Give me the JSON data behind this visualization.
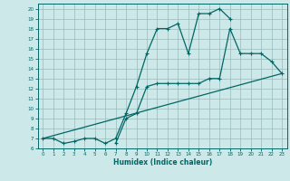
{
  "bg_color": "#cce8e8",
  "grid_color": "#99bbbb",
  "line_color": "#006666",
  "xlabel": "Humidex (Indice chaleur)",
  "xlim": [
    -0.5,
    23.5
  ],
  "ylim": [
    6,
    20.5
  ],
  "xticks": [
    0,
    1,
    2,
    3,
    4,
    5,
    6,
    7,
    8,
    9,
    10,
    11,
    12,
    13,
    14,
    15,
    16,
    17,
    18,
    19,
    20,
    21,
    22,
    23
  ],
  "yticks": [
    6,
    7,
    8,
    9,
    10,
    11,
    12,
    13,
    14,
    15,
    16,
    17,
    18,
    19,
    20
  ],
  "curve1_x": [
    0,
    1,
    2,
    3,
    4,
    5,
    6,
    7,
    8,
    9,
    10,
    11,
    12,
    13,
    14,
    15,
    16,
    17,
    18
  ],
  "curve1_y": [
    7.0,
    7.0,
    6.5,
    6.7,
    7.0,
    7.0,
    6.5,
    7.0,
    9.5,
    12.2,
    15.5,
    18.0,
    18.0,
    18.5,
    15.5,
    19.5,
    19.5,
    20.0,
    19.0
  ],
  "curve2_x": [
    7,
    8,
    9,
    10,
    11,
    12,
    13,
    14,
    15,
    16,
    17,
    18,
    19,
    20,
    21,
    22,
    23
  ],
  "curve2_y": [
    6.5,
    9.0,
    9.5,
    12.2,
    12.5,
    12.5,
    12.5,
    12.5,
    12.5,
    13.0,
    13.0,
    18.0,
    15.5,
    15.5,
    15.5,
    14.7,
    13.5
  ],
  "curve3_x": [
    0,
    23
  ],
  "curve3_y": [
    7.0,
    13.5
  ]
}
